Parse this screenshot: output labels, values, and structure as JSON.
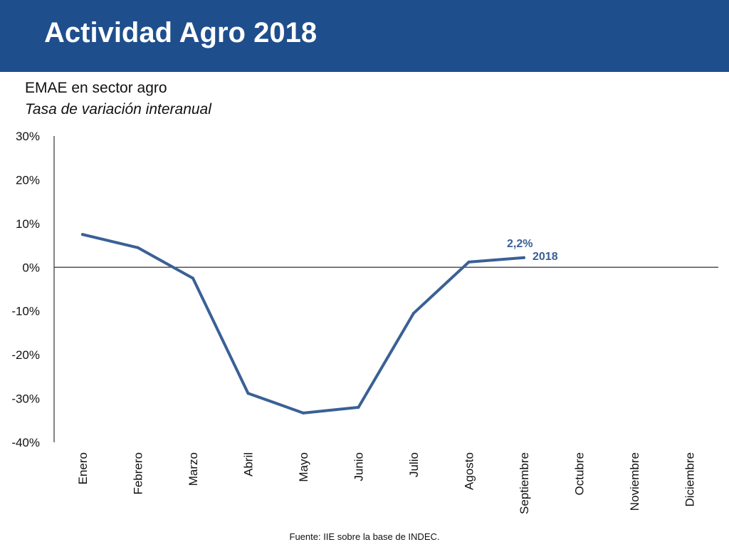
{
  "header": {
    "title": "Actividad Agro 2018"
  },
  "chart_data": {
    "type": "line",
    "title": "EMAE en sector agro",
    "subtitle": "Tasa de variación interanual",
    "categories": [
      "Enero",
      "Febrero",
      "Marzo",
      "Abril",
      "Mayo",
      "Junio",
      "Julio",
      "Agosto",
      "Septiembre",
      "Octubre",
      "Noviembre",
      "Diciembre"
    ],
    "series": [
      {
        "name": "2018",
        "values": [
          7.5,
          4.5,
          -2.5,
          -28.8,
          -33.3,
          -32.0,
          -10.5,
          1.2,
          2.2,
          null,
          null,
          null
        ],
        "color": "#3a6096"
      }
    ],
    "ylim": [
      -40,
      30
    ],
    "yticks": [
      30,
      20,
      10,
      0,
      -10,
      -20,
      -30,
      -40
    ],
    "ytick_labels": [
      "30%",
      "20%",
      "10%",
      "0%",
      "-10%",
      "-20%",
      "-30%",
      "-40%"
    ],
    "annotations": [
      {
        "text": "2,2%",
        "category": "Septiembre"
      }
    ],
    "series_label": "2018",
    "grid": false
  },
  "source": "Fuente: IIE sobre la base de INDEC."
}
